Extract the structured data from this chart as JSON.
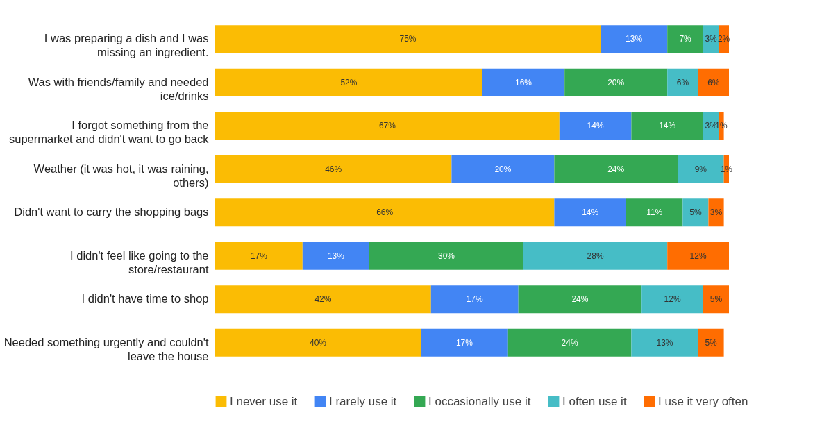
{
  "chart_data": {
    "type": "bar",
    "orientation": "horizontal",
    "stacked": true,
    "categories": [
      "I was preparing a dish and I was missing an ingredient.",
      "Was with friends/family and needed ice/drinks",
      "I forgot something from the supermarket and didn't want to go back",
      "Weather (it was hot, it was raining, others)",
      "Didn't want to carry the shopping bags",
      "I didn't feel like going to the store/restaurant",
      "I didn't have time to shop",
      "Needed something urgently and couldn't leave the house"
    ],
    "series": [
      {
        "name": "I never use it",
        "color": "#fbbc04",
        "values": [
          75,
          52,
          67,
          46,
          66,
          17,
          42,
          40
        ],
        "value_labels": [
          "75%",
          "52%",
          "67%",
          "46%",
          "66%",
          "17%",
          "42%",
          "40%"
        ]
      },
      {
        "name": "I rarely use it",
        "color": "#4285f4",
        "values": [
          13,
          16,
          14,
          20,
          14,
          13,
          17,
          17
        ],
        "value_labels": [
          "13%",
          "16%",
          "14%",
          "20%",
          "14%",
          "13%",
          "17%",
          "17%"
        ]
      },
      {
        "name": "I occasionally use it",
        "color": "#34a853",
        "values": [
          7,
          20,
          14,
          24,
          11,
          30,
          24,
          24
        ],
        "value_labels": [
          "7%",
          "20%",
          "14%",
          "24%",
          "11%",
          "30%",
          "24%",
          "24%"
        ]
      },
      {
        "name": "I often use it",
        "color": "#46bdc6",
        "values": [
          3,
          6,
          3,
          9,
          5,
          28,
          12,
          13
        ],
        "value_labels": [
          "3%",
          "6%",
          "3%",
          "9%",
          "5%",
          "28%",
          "12%",
          "13%"
        ]
      },
      {
        "name": "I use it very often",
        "color": "#ff6d01",
        "values": [
          2,
          6,
          1,
          1,
          3,
          12,
          5,
          5
        ],
        "value_labels": [
          "2%",
          "6%",
          "1%",
          "1%",
          "3%",
          "12%",
          "5%",
          "5%"
        ]
      }
    ],
    "xlim": [
      0,
      100
    ],
    "tick_labels": "y",
    "legend": "bottom"
  }
}
